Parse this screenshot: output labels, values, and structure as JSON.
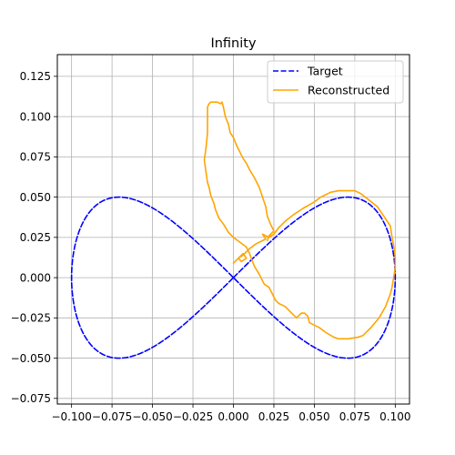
{
  "chart_data": {
    "type": "line",
    "title": "Infinity",
    "xlabel": "",
    "ylabel": "",
    "xlim": [
      -0.1,
      0.1
    ],
    "ylim": [
      -0.075,
      0.125
    ],
    "grid": true,
    "legend_position": "top-right",
    "x_ticks": [
      -0.1,
      -0.075,
      -0.05,
      -0.025,
      0.0,
      0.025,
      0.05,
      0.075,
      0.1
    ],
    "x_tick_labels": [
      "−0.100",
      "−0.075",
      "−0.050",
      "−0.025",
      "0.000",
      "0.025",
      "0.050",
      "0.075",
      "0.100"
    ],
    "y_ticks": [
      -0.075,
      -0.05,
      -0.025,
      0.0,
      0.025,
      0.05,
      0.075,
      0.1,
      0.125
    ],
    "y_tick_labels": [
      "−0.075",
      "−0.050",
      "−0.025",
      "0.000",
      "0.025",
      "0.050",
      "0.075",
      "0.100",
      "0.125"
    ],
    "series": [
      {
        "name": "Target",
        "color": "#0000ff",
        "style": "dashed",
        "shape": "lemniscate of Gerono: x = 0.1*sin(t), y = 0.05*sin(2t)",
        "points": [
          [
            0.0,
            0.0
          ],
          [
            0.0259,
            0.025
          ],
          [
            0.05,
            0.0433
          ],
          [
            0.0707,
            0.05
          ],
          [
            0.0866,
            0.0433
          ],
          [
            0.0966,
            0.025
          ],
          [
            0.1,
            0.0
          ],
          [
            0.0966,
            -0.025
          ],
          [
            0.0866,
            -0.0433
          ],
          [
            0.0707,
            -0.05
          ],
          [
            0.05,
            -0.0433
          ],
          [
            0.0259,
            -0.025
          ],
          [
            0.0,
            0.0
          ],
          [
            -0.0259,
            0.025
          ],
          [
            -0.05,
            0.0433
          ],
          [
            -0.0707,
            0.05
          ],
          [
            -0.0866,
            0.0433
          ],
          [
            -0.0966,
            0.025
          ],
          [
            -0.1,
            0.0
          ],
          [
            -0.0966,
            -0.025
          ],
          [
            -0.0866,
            -0.0433
          ],
          [
            -0.0707,
            -0.05
          ],
          [
            -0.05,
            -0.0433
          ],
          [
            -0.0259,
            -0.025
          ],
          [
            0.0,
            0.0
          ]
        ]
      },
      {
        "name": "Reconstructed",
        "color": "#ffa500",
        "style": "solid",
        "points": [
          [
            0.0,
            0.009
          ],
          [
            0.003,
            0.012
          ],
          [
            0.006,
            0.015
          ],
          [
            0.008,
            0.012
          ],
          [
            0.005,
            0.01
          ],
          [
            0.003,
            0.012
          ],
          [
            0.006,
            0.014
          ],
          [
            0.01,
            0.018
          ],
          [
            0.014,
            0.021
          ],
          [
            0.018,
            0.023
          ],
          [
            0.02,
            0.024
          ],
          [
            0.018,
            0.027
          ],
          [
            0.022,
            0.025
          ],
          [
            0.025,
            0.027
          ],
          [
            0.028,
            0.031
          ],
          [
            0.032,
            0.035
          ],
          [
            0.037,
            0.039
          ],
          [
            0.043,
            0.043
          ],
          [
            0.05,
            0.047
          ],
          [
            0.054,
            0.05
          ],
          [
            0.06,
            0.053
          ],
          [
            0.065,
            0.054
          ],
          [
            0.07,
            0.054
          ],
          [
            0.075,
            0.054
          ],
          [
            0.079,
            0.052
          ],
          [
            0.084,
            0.048
          ],
          [
            0.089,
            0.044
          ],
          [
            0.093,
            0.038
          ],
          [
            0.097,
            0.032
          ],
          [
            0.098,
            0.025
          ],
          [
            0.099,
            0.02
          ],
          [
            0.1,
            0.013
          ],
          [
            0.1,
            0.006
          ],
          [
            0.099,
            0.0
          ],
          [
            0.098,
            -0.006
          ],
          [
            0.097,
            -0.01
          ],
          [
            0.094,
            -0.018
          ],
          [
            0.09,
            -0.025
          ],
          [
            0.085,
            -0.031
          ],
          [
            0.08,
            -0.036
          ],
          [
            0.077,
            -0.037
          ],
          [
            0.071,
            -0.038
          ],
          [
            0.065,
            -0.038
          ],
          [
            0.062,
            -0.037
          ],
          [
            0.057,
            -0.034
          ],
          [
            0.053,
            -0.031
          ],
          [
            0.049,
            -0.029
          ],
          [
            0.047,
            -0.028
          ],
          [
            0.046,
            -0.024
          ],
          [
            0.044,
            -0.022
          ],
          [
            0.042,
            -0.022
          ],
          [
            0.041,
            -0.023
          ],
          [
            0.039,
            -0.025
          ],
          [
            0.036,
            -0.022
          ],
          [
            0.032,
            -0.018
          ],
          [
            0.028,
            -0.016
          ],
          [
            0.026,
            -0.014
          ],
          [
            0.024,
            -0.01
          ],
          [
            0.022,
            -0.006
          ],
          [
            0.019,
            -0.004
          ],
          [
            0.016,
            0.002
          ],
          [
            0.013,
            0.007
          ],
          [
            0.011,
            0.012
          ],
          [
            0.01,
            0.015
          ],
          [
            0.008,
            0.019
          ],
          [
            0.004,
            0.022
          ],
          [
            0.0,
            0.025
          ],
          [
            -0.003,
            0.028
          ],
          [
            -0.006,
            0.033
          ],
          [
            -0.009,
            0.037
          ],
          [
            -0.011,
            0.042
          ],
          [
            -0.012,
            0.046
          ],
          [
            -0.014,
            0.051
          ],
          [
            -0.015,
            0.056
          ],
          [
            -0.016,
            0.059
          ],
          [
            -0.017,
            0.066
          ],
          [
            -0.018,
            0.073
          ],
          [
            -0.017,
            0.08
          ],
          [
            -0.016,
            0.09
          ],
          [
            -0.016,
            0.1
          ],
          [
            -0.016,
            0.106
          ],
          [
            -0.015,
            0.108
          ],
          [
            -0.014,
            0.109
          ],
          [
            -0.012,
            0.109
          ],
          [
            -0.01,
            0.109
          ],
          [
            -0.008,
            0.108
          ],
          [
            -0.007,
            0.109
          ],
          [
            -0.006,
            0.105
          ],
          [
            -0.005,
            0.1
          ],
          [
            -0.003,
            0.095
          ],
          [
            -0.002,
            0.09
          ],
          [
            0.0,
            0.087
          ],
          [
            0.002,
            0.082
          ],
          [
            0.004,
            0.078
          ],
          [
            0.006,
            0.074
          ],
          [
            0.008,
            0.071
          ],
          [
            0.01,
            0.067
          ],
          [
            0.013,
            0.062
          ],
          [
            0.016,
            0.056
          ],
          [
            0.018,
            0.05
          ],
          [
            0.02,
            0.044
          ],
          [
            0.021,
            0.038
          ],
          [
            0.023,
            0.033
          ],
          [
            0.025,
            0.029
          ],
          [
            0.022,
            0.026
          ],
          [
            0.021,
            0.023
          ]
        ]
      }
    ]
  }
}
